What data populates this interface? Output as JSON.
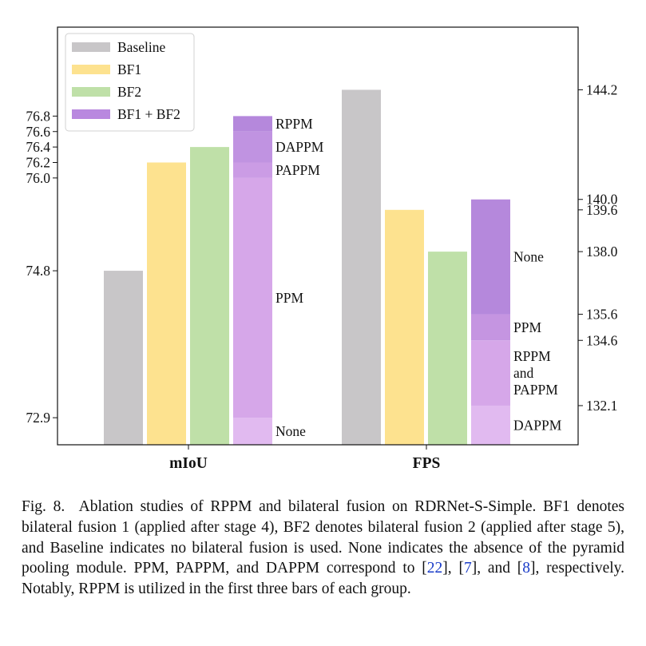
{
  "chart_data": {
    "type": "bar",
    "groups": [
      {
        "name": "mIoU",
        "axis": "left",
        "ylim": [
          72.55,
          77.95
        ],
        "ticks": [
          "72.9",
          "74.8",
          "76.0",
          "76.2",
          "76.4",
          "76.6",
          "76.8"
        ],
        "bars": [
          {
            "series": "Baseline",
            "value": 74.8
          },
          {
            "series": "BF1",
            "value": 76.2
          },
          {
            "series": "BF2",
            "value": 76.4
          },
          {
            "series": "BF1 + BF2",
            "stack": [
              {
                "label": "None",
                "value": 72.9
              },
              {
                "label": "PPM",
                "value": 76.0
              },
              {
                "label": "PAPPM",
                "value": 76.2
              },
              {
                "label": "DAPPM",
                "value": 76.6
              },
              {
                "label": "RPPM",
                "value": 76.8
              }
            ]
          }
        ]
      },
      {
        "name": "FPS",
        "axis": "right",
        "ylim": [
          130.6,
          146.6
        ],
        "ticks": [
          "132.1",
          "134.6",
          "135.6",
          "138.0",
          "139.6",
          "140.0",
          "144.2"
        ],
        "bars": [
          {
            "series": "Baseline",
            "value": 144.2
          },
          {
            "series": "BF1",
            "value": 139.6
          },
          {
            "series": "BF2",
            "value": 138.0
          },
          {
            "series": "BF1 + BF2",
            "stack": [
              {
                "label": "DAPPM",
                "value": 132.1
              },
              {
                "label": "RPPM and PAPPM",
                "value": 134.6
              },
              {
                "label": "PPM",
                "value": 135.6
              },
              {
                "label": "None",
                "value": 140.0
              }
            ]
          }
        ]
      }
    ],
    "legend": {
      "position": "top-left",
      "entries": [
        {
          "label": "Baseline",
          "color": "#c8c6c8"
        },
        {
          "label": "BF1",
          "color": "#fde28f"
        },
        {
          "label": "BF2",
          "color": "#bfe0a8"
        },
        {
          "label": "BF1 + BF2",
          "color": "#b988df"
        }
      ]
    },
    "colors": {
      "Baseline": "#c8c6c8",
      "BF1": "#fde28f",
      "BF2": "#bfe0a8",
      "mIoU_stack": [
        "#e1baf0",
        "#d6a7e9",
        "#cb9ce5",
        "#c093e1",
        "#b588dc"
      ],
      "FPS_stack": [
        "#e1baf0",
        "#d6a7e9",
        "#c595e1",
        "#b588dc"
      ]
    }
  },
  "caption": {
    "label": "Fig. 8.",
    "text_before_refs": "Ablation studies of RPPM and bilateral fusion on RDRNet-S-Simple. BF1 denotes bilateral fusion 1 (applied after stage 4), BF2 denotes bilateral fusion 2 (applied after stage 5), and Baseline indicates no bilateral fusion is used. None indicates the absence of the pyramid pooling module. PPM, PAPPM, and DAPPM correspond to ",
    "ref1": "22",
    "sep1": ", ",
    "ref2": "7",
    "sep2": ", and ",
    "ref3": "8",
    "text_after_refs": ", respectively. Notably, RPPM is utilized in the first three bars of each group."
  }
}
